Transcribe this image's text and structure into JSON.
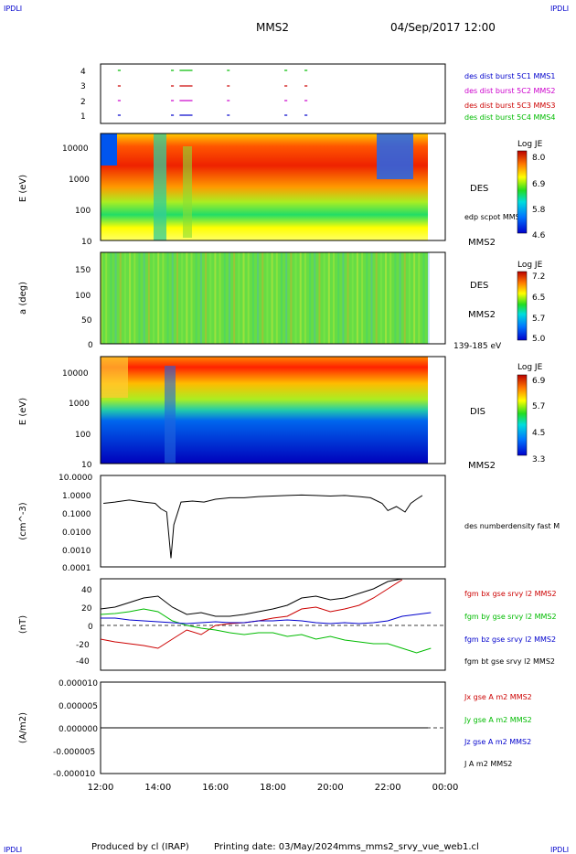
{
  "header": {
    "corner_tl": "IPDLI",
    "corner_tr": "IPDLI",
    "corner_bl": "IPDLI",
    "corner_br": "IPDLI",
    "spacecraft": "MMS2",
    "date": "04/Sep/2017 12:00"
  },
  "footer": {
    "produced": "Produced by cl (IRAP)",
    "printing": "Printing date: 03/May/2024",
    "file": "mms_mms2_srvy_vue_web1.cl"
  },
  "x_axis": {
    "ticks": [
      "12:00",
      "14:00",
      "16:00",
      "18:00",
      "20:00",
      "22:00",
      "00:00"
    ],
    "hours": [
      12,
      14,
      16,
      18,
      20,
      22,
      24
    ]
  },
  "chart_data": [
    {
      "type": "scatter",
      "panel": "burst",
      "y_ticks": [
        "4",
        "3",
        "2",
        "1"
      ],
      "legend": [
        {
          "name": "des dist burst 5C1 MMS1",
          "color": "#0000cc"
        },
        {
          "name": "des dist burst 5C2 MMS2",
          "color": "#cc00cc"
        },
        {
          "name": "des dist burst 5C3 MMS3",
          "color": "#cc0000"
        },
        {
          "name": "des dist burst 5C4 MMS4",
          "color": "#00bb00"
        }
      ],
      "intervals_hours": [
        [
          12.6,
          12.7
        ],
        [
          14.45,
          14.55
        ],
        [
          14.75,
          15.2
        ],
        [
          16.4,
          16.45
        ],
        [
          18.4,
          18.5
        ],
        [
          19.1,
          19.2
        ]
      ]
    },
    {
      "type": "heatmap",
      "panel": "des-energy",
      "ylabel": "E (eV)",
      "y_ticks": [
        "10000",
        "1000",
        "100",
        "10"
      ],
      "scale": "log",
      "ylim": [
        10,
        30000
      ],
      "label_right": "DES",
      "label_sub": "MMS2",
      "overlay_label": "edp scpot MMS2",
      "colorbar": {
        "title": "Log JE",
        "ticks": [
          "8.0",
          "6.9",
          "5.8",
          "4.6"
        ]
      }
    },
    {
      "type": "heatmap",
      "panel": "des-pitch",
      "ylabel": "a (deg)",
      "y_ticks": [
        "150",
        "100",
        "50",
        "0"
      ],
      "ylim": [
        0,
        180
      ],
      "label_right": "DES",
      "label_sub": "MMS2",
      "energy_range": "139-185 eV",
      "colorbar": {
        "title": "Log JE",
        "ticks": [
          "7.2",
          "6.5",
          "5.7",
          "5.0"
        ]
      }
    },
    {
      "type": "heatmap",
      "panel": "dis-energy",
      "ylabel": "E (eV)",
      "y_ticks": [
        "10000",
        "1000",
        "100",
        "10"
      ],
      "scale": "log",
      "ylim": [
        10,
        30000
      ],
      "label_right": "DIS",
      "label_sub": "MMS2",
      "colorbar": {
        "title": "Log JE",
        "ticks": [
          "6.9",
          "5.7",
          "4.5",
          "3.3"
        ]
      }
    },
    {
      "type": "line",
      "panel": "density",
      "ylabel": "(cm^-3)",
      "y_ticks": [
        "10.0000",
        "1.0000",
        "0.1000",
        "0.0100",
        "0.0010",
        "0.0001"
      ],
      "scale": "log",
      "ylim": [
        0.0001,
        10
      ],
      "series": [
        {
          "name": "des numberdensity fast M",
          "color": "#000000"
        }
      ],
      "x_hours": [
        12.1,
        12.5,
        13.0,
        13.5,
        13.9,
        14.1,
        14.3,
        14.45,
        14.55,
        14.8,
        15.2,
        15.6,
        16.0,
        16.5,
        17.0,
        17.5,
        18.0,
        18.5,
        19.0,
        19.5,
        20.0,
        20.5,
        21.0,
        21.4,
        21.8,
        22.0,
        22.3,
        22.6,
        22.8,
        23.0,
        23.2
      ],
      "values": [
        0.3,
        0.35,
        0.45,
        0.35,
        0.3,
        0.15,
        0.1,
        0.0003,
        0.02,
        0.35,
        0.4,
        0.35,
        0.5,
        0.6,
        0.6,
        0.7,
        0.75,
        0.8,
        0.85,
        0.8,
        0.75,
        0.8,
        0.7,
        0.6,
        0.3,
        0.12,
        0.2,
        0.1,
        0.3,
        0.5,
        0.8
      ]
    },
    {
      "type": "line",
      "panel": "magnetic-field",
      "ylabel": "(nT)",
      "y_ticks": [
        "40",
        "20",
        "0",
        "-20",
        "-40"
      ],
      "ylim": [
        -50,
        50
      ],
      "x_hours": [
        12.0,
        12.5,
        13.0,
        13.5,
        14.0,
        14.5,
        15.0,
        15.5,
        16.0,
        16.5,
        17.0,
        17.5,
        18.0,
        18.5,
        19.0,
        19.5,
        20.0,
        20.5,
        21.0,
        21.5,
        22.0,
        22.5,
        23.0,
        23.5
      ],
      "series": [
        {
          "name": "fgm bx gse srvy l2 MMS2",
          "color": "#cc0000",
          "values": [
            -15,
            -18,
            -20,
            -22,
            -25,
            -15,
            -5,
            -10,
            0,
            2,
            3,
            5,
            8,
            10,
            18,
            20,
            15,
            18,
            22,
            30,
            40,
            50,
            null,
            null
          ]
        },
        {
          "name": "fgm by gse srvy l2 MMS2",
          "color": "#00bb00",
          "values": [
            12,
            13,
            15,
            18,
            15,
            5,
            0,
            -3,
            -5,
            -8,
            -10,
            -8,
            -8,
            -12,
            -10,
            -15,
            -12,
            -16,
            -18,
            -20,
            -20,
            -25,
            -30,
            -25
          ]
        },
        {
          "name": "fgm bz gse srvy l2 MMS2",
          "color": "#0000cc",
          "values": [
            8,
            8,
            6,
            5,
            4,
            3,
            2,
            3,
            4,
            3,
            3,
            5,
            5,
            6,
            5,
            3,
            2,
            3,
            2,
            3,
            5,
            10,
            12,
            14
          ]
        },
        {
          "name": "fgm bt gse srvy l2 MMS2",
          "color": "#000000",
          "values": [
            18,
            20,
            25,
            30,
            32,
            20,
            12,
            14,
            10,
            10,
            12,
            15,
            18,
            22,
            30,
            32,
            28,
            30,
            35,
            40,
            48,
            55,
            null,
            null
          ]
        }
      ]
    },
    {
      "type": "line",
      "panel": "current",
      "ylabel": "(A/m2)",
      "y_ticks": [
        "0.000010",
        "0.000005",
        "0.000000",
        "-0.000005",
        "-0.000010"
      ],
      "ylim": [
        -1e-05,
        1e-05
      ],
      "series": [
        {
          "name": "Jx gse A m2 MMS2",
          "color": "#cc0000"
        },
        {
          "name": "Jy gse A m2 MMS2",
          "color": "#00bb00"
        },
        {
          "name": "Jz gse A m2 MMS2",
          "color": "#0000cc"
        },
        {
          "name": "J A m2 MMS2",
          "color": "#000000"
        }
      ],
      "values": [
        0,
        0
      ]
    }
  ]
}
